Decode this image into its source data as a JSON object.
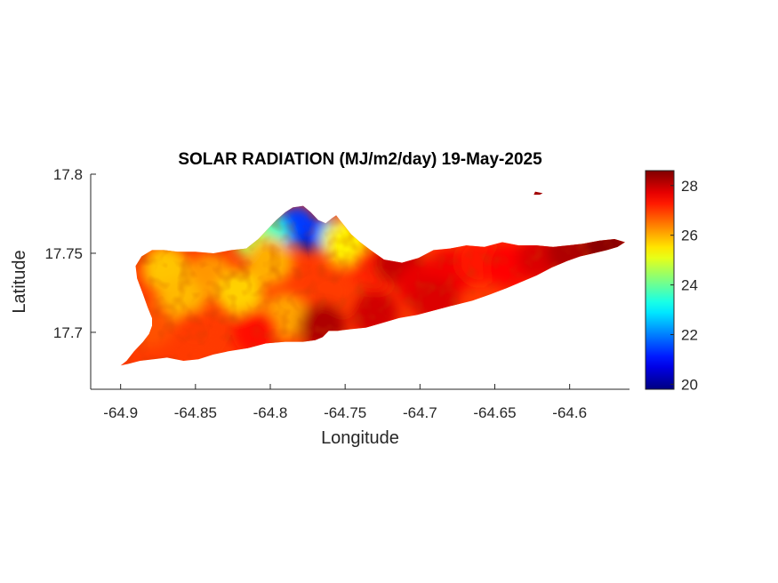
{
  "chart_data": {
    "type": "heatmap",
    "title": "SOLAR RADIATION (MJ/m2/day) 19-May-2025",
    "xlabel": "Longitude",
    "ylabel": "Latitude",
    "xlim": [
      -64.92,
      -64.56
    ],
    "ylim": [
      17.664,
      17.8
    ],
    "x_ticks": [
      -64.9,
      -64.85,
      -64.8,
      -64.75,
      -64.7,
      -64.65,
      -64.6
    ],
    "x_tick_labels": [
      "-64.9",
      "-64.85",
      "-64.8",
      "-64.75",
      "-64.7",
      "-64.65",
      "-64.6"
    ],
    "y_ticks": [
      17.7,
      17.75,
      17.8
    ],
    "y_tick_labels": [
      "17.7",
      "17.75",
      "17.8"
    ],
    "colormap": "jet",
    "clim": [
      19.8,
      28.6
    ],
    "colorbar_ticks": [
      20,
      22,
      24,
      26,
      28
    ],
    "colorbar_tick_labels": [
      "20",
      "22",
      "24",
      "26",
      "28"
    ],
    "land_outline": [
      [
        -64.9,
        17.679
      ],
      [
        -64.896,
        17.682
      ],
      [
        -64.891,
        17.688
      ],
      [
        -64.885,
        17.694
      ],
      [
        -64.881,
        17.699
      ],
      [
        -64.879,
        17.704
      ],
      [
        -64.879,
        17.709
      ],
      [
        -64.882,
        17.716
      ],
      [
        -64.885,
        17.724
      ],
      [
        -64.889,
        17.734
      ],
      [
        -64.89,
        17.742
      ],
      [
        -64.886,
        17.748
      ],
      [
        -64.879,
        17.752
      ],
      [
        -64.871,
        17.752
      ],
      [
        -64.862,
        17.751
      ],
      [
        -64.85,
        17.751
      ],
      [
        -64.838,
        17.75
      ],
      [
        -64.826,
        17.752
      ],
      [
        -64.816,
        17.753
      ],
      [
        -64.808,
        17.759
      ],
      [
        -64.801,
        17.766
      ],
      [
        -64.796,
        17.771
      ],
      [
        -64.79,
        17.776
      ],
      [
        -64.785,
        17.779
      ],
      [
        -64.778,
        17.78
      ],
      [
        -64.773,
        17.776
      ],
      [
        -64.768,
        17.771
      ],
      [
        -64.763,
        17.769
      ],
      [
        -64.759,
        17.772
      ],
      [
        -64.756,
        17.774
      ],
      [
        -64.751,
        17.768
      ],
      [
        -64.746,
        17.762
      ],
      [
        -64.74,
        17.757
      ],
      [
        -64.733,
        17.752
      ],
      [
        -64.724,
        17.746
      ],
      [
        -64.712,
        17.744
      ],
      [
        -64.701,
        17.747
      ],
      [
        -64.691,
        17.752
      ],
      [
        -64.68,
        17.753
      ],
      [
        -64.669,
        17.755
      ],
      [
        -64.657,
        17.754
      ],
      [
        -64.645,
        17.757
      ],
      [
        -64.634,
        17.755
      ],
      [
        -64.622,
        17.755
      ],
      [
        -64.611,
        17.754
      ],
      [
        -64.601,
        17.755
      ],
      [
        -64.591,
        17.756
      ],
      [
        -64.58,
        17.758
      ],
      [
        -64.57,
        17.759
      ],
      [
        -64.563,
        17.757
      ],
      [
        -64.568,
        17.754
      ],
      [
        -64.575,
        17.752
      ],
      [
        -64.584,
        17.75
      ],
      [
        -64.593,
        17.748
      ],
      [
        -64.602,
        17.745
      ],
      [
        -64.612,
        17.741
      ],
      [
        -64.622,
        17.736
      ],
      [
        -64.632,
        17.732
      ],
      [
        -64.642,
        17.728
      ],
      [
        -64.653,
        17.724
      ],
      [
        -64.665,
        17.72
      ],
      [
        -64.678,
        17.717
      ],
      [
        -64.69,
        17.714
      ],
      [
        -64.702,
        17.711
      ],
      [
        -64.714,
        17.709
      ],
      [
        -64.725,
        17.706
      ],
      [
        -64.736,
        17.703
      ],
      [
        -64.746,
        17.702
      ],
      [
        -64.755,
        17.701
      ],
      [
        -64.761,
        17.701
      ],
      [
        -64.765,
        17.697
      ],
      [
        -64.77,
        17.695
      ],
      [
        -64.778,
        17.694
      ],
      [
        -64.79,
        17.694
      ],
      [
        -64.803,
        17.693
      ],
      [
        -64.815,
        17.69
      ],
      [
        -64.828,
        17.688
      ],
      [
        -64.838,
        17.686
      ],
      [
        -64.848,
        17.683
      ],
      [
        -64.858,
        17.682
      ],
      [
        -64.869,
        17.684
      ],
      [
        -64.878,
        17.683
      ],
      [
        -64.887,
        17.682
      ],
      [
        -64.895,
        17.68
      ]
    ],
    "islets": [
      [
        [
          -64.624,
          17.787
        ],
        [
          -64.62,
          17.787
        ],
        [
          -64.618,
          17.788
        ],
        [
          -64.623,
          17.789
        ]
      ]
    ],
    "field": [
      {
        "lon": -64.775,
        "lat": 17.763,
        "value": 20.1
      },
      {
        "lon": -64.762,
        "lat": 17.762,
        "value": 21.0
      },
      {
        "lon": -64.79,
        "lat": 17.765,
        "value": 22.0
      },
      {
        "lon": -64.782,
        "lat": 17.769,
        "value": 21.4
      },
      {
        "lon": -64.8,
        "lat": 17.762,
        "value": 23.6
      },
      {
        "lon": -64.812,
        "lat": 17.758,
        "value": 24.6
      },
      {
        "lon": -64.755,
        "lat": 17.76,
        "value": 23.2
      },
      {
        "lon": -64.75,
        "lat": 17.757,
        "value": 25.4
      },
      {
        "lon": -64.87,
        "lat": 17.74,
        "value": 25.8
      },
      {
        "lon": -64.84,
        "lat": 17.735,
        "value": 26.2
      },
      {
        "lon": -64.86,
        "lat": 17.72,
        "value": 25.9
      },
      {
        "lon": -64.82,
        "lat": 17.725,
        "value": 25.7
      },
      {
        "lon": -64.8,
        "lat": 17.745,
        "value": 26.0
      },
      {
        "lon": -64.79,
        "lat": 17.71,
        "value": 26.1
      },
      {
        "lon": -64.88,
        "lat": 17.705,
        "value": 26.8
      },
      {
        "lon": -64.85,
        "lat": 17.7,
        "value": 27.0
      },
      {
        "lon": -64.76,
        "lat": 17.725,
        "value": 27.0
      },
      {
        "lon": -64.73,
        "lat": 17.74,
        "value": 27.2
      },
      {
        "lon": -64.715,
        "lat": 17.745,
        "value": 28.0
      },
      {
        "lon": -64.7,
        "lat": 17.73,
        "value": 27.7
      },
      {
        "lon": -64.68,
        "lat": 17.738,
        "value": 27.6
      },
      {
        "lon": -64.66,
        "lat": 17.745,
        "value": 27.3
      },
      {
        "lon": -64.64,
        "lat": 17.742,
        "value": 27.5
      },
      {
        "lon": -64.62,
        "lat": 17.747,
        "value": 27.8
      },
      {
        "lon": -64.6,
        "lat": 17.751,
        "value": 28.2
      },
      {
        "lon": -64.575,
        "lat": 17.755,
        "value": 28.5
      },
      {
        "lon": -64.765,
        "lat": 17.704,
        "value": 28.2
      },
      {
        "lon": -64.73,
        "lat": 17.712,
        "value": 27.9
      },
      {
        "lon": -64.69,
        "lat": 17.72,
        "value": 27.8
      },
      {
        "lon": -64.81,
        "lat": 17.7,
        "value": 27.4
      }
    ]
  }
}
